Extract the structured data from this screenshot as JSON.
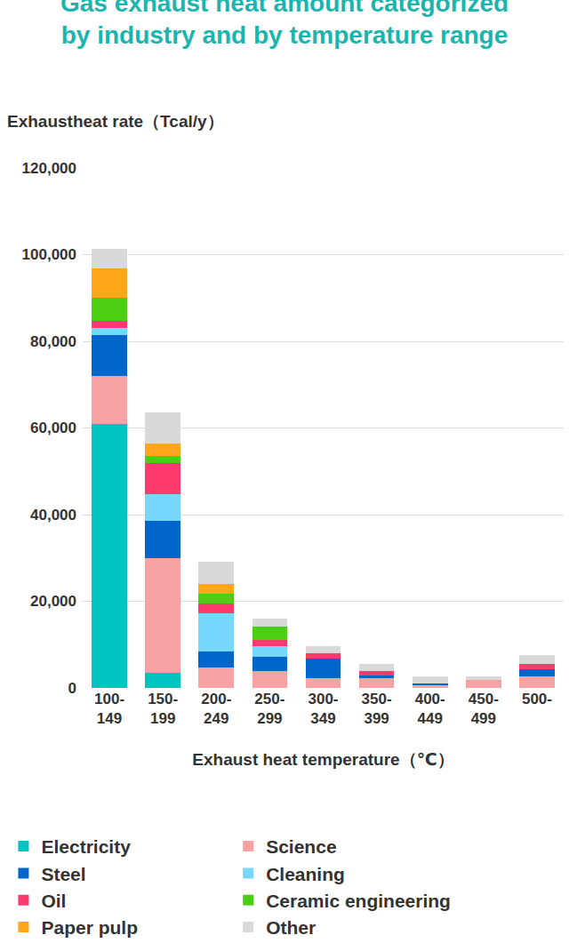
{
  "chart_data": {
    "type": "bar",
    "title": "Gas exhaust heat amount categorized by industry and by temperature range",
    "ylabel": "Exhaustheat rate（Tcal/y）",
    "xlabel": "Exhaust heat temperature（℃）",
    "categories": [
      "100-149",
      "150-199",
      "200-249",
      "250-299",
      "300-349",
      "350-399",
      "400-449",
      "450-499",
      "500-"
    ],
    "series": [
      {
        "name": "Electricity",
        "color": "#00c4bf",
        "values": [
          61000,
          3500,
          0,
          0,
          0,
          0,
          0,
          0,
          0
        ]
      },
      {
        "name": "Science",
        "color": "#f8a3a3",
        "values": [
          11000,
          26500,
          4700,
          3900,
          2200,
          2200,
          600,
          1800,
          2700
        ]
      },
      {
        "name": "Steel",
        "color": "#0066cc",
        "values": [
          9400,
          8600,
          3700,
          3200,
          4500,
          700,
          400,
          0,
          1600
        ]
      },
      {
        "name": "Cleaning",
        "color": "#77d6fb",
        "values": [
          1700,
          6100,
          8900,
          2500,
          0,
          0,
          0,
          0,
          0
        ]
      },
      {
        "name": "Oil",
        "color": "#ff3a6e",
        "values": [
          1600,
          7300,
          2100,
          1400,
          1300,
          1000,
          0,
          0,
          1200
        ]
      },
      {
        "name": "Ceramic engineering",
        "color": "#4ccf13",
        "values": [
          5300,
          1500,
          2400,
          3100,
          0,
          0,
          0,
          0,
          0
        ]
      },
      {
        "name": "Paper pulp",
        "color": "#ffa61a",
        "values": [
          6900,
          3000,
          2100,
          0,
          0,
          0,
          0,
          0,
          0
        ]
      },
      {
        "name": "Other",
        "color": "#d9d9d9",
        "values": [
          4500,
          7000,
          5300,
          2000,
          1600,
          1600,
          1700,
          900,
          2100
        ]
      }
    ],
    "ylim": [
      0,
      120000
    ],
    "yticks": [
      0,
      {
        "value": 20000,
        "label": "20,000"
      },
      {
        "value": 40000,
        "label": "40,000"
      },
      {
        "value": 60000,
        "label": "60,000"
      },
      {
        "value": 80000,
        "label": "80,000"
      },
      {
        "value": 100000,
        "label": "100,000"
      },
      {
        "value": 120000,
        "label": "120,000"
      }
    ],
    "stacked": true,
    "grid": true,
    "legend": "bottom"
  }
}
